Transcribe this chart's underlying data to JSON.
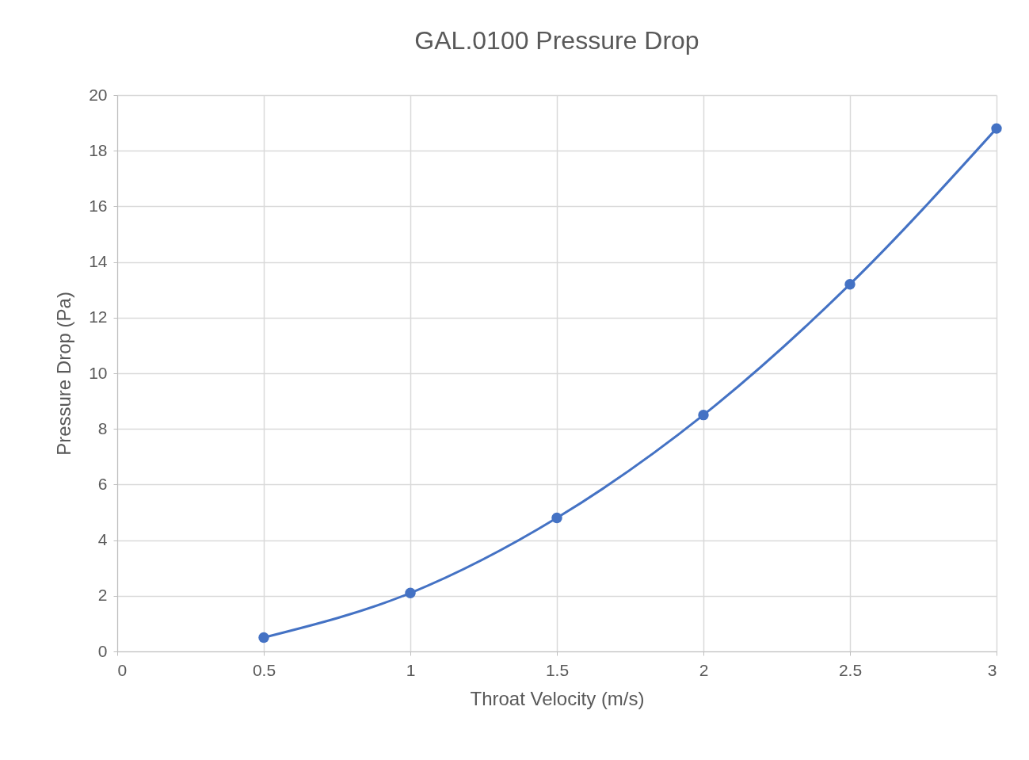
{
  "chart_data": {
    "type": "line",
    "title": "GAL.0100 Pressure Drop",
    "xlabel": "Throat Velocity (m/s)",
    "ylabel": "Pressure Drop (Pa)",
    "x": [
      0.5,
      1,
      1.5,
      2,
      2.5,
      3
    ],
    "series": [
      {
        "color": "#4472c4",
        "values": [
          0.5,
          2.1,
          4.8,
          8.5,
          13.2,
          18.8
        ]
      }
    ],
    "xlim": [
      0,
      3
    ],
    "xticks": [
      0,
      0.5,
      1,
      1.5,
      2,
      2.5,
      3
    ],
    "ylim": [
      0,
      20
    ],
    "yticks": [
      0,
      2,
      4,
      6,
      8,
      10,
      12,
      14,
      16,
      18,
      20
    ],
    "grid": true,
    "marker": "circle",
    "line_style": "solid"
  }
}
